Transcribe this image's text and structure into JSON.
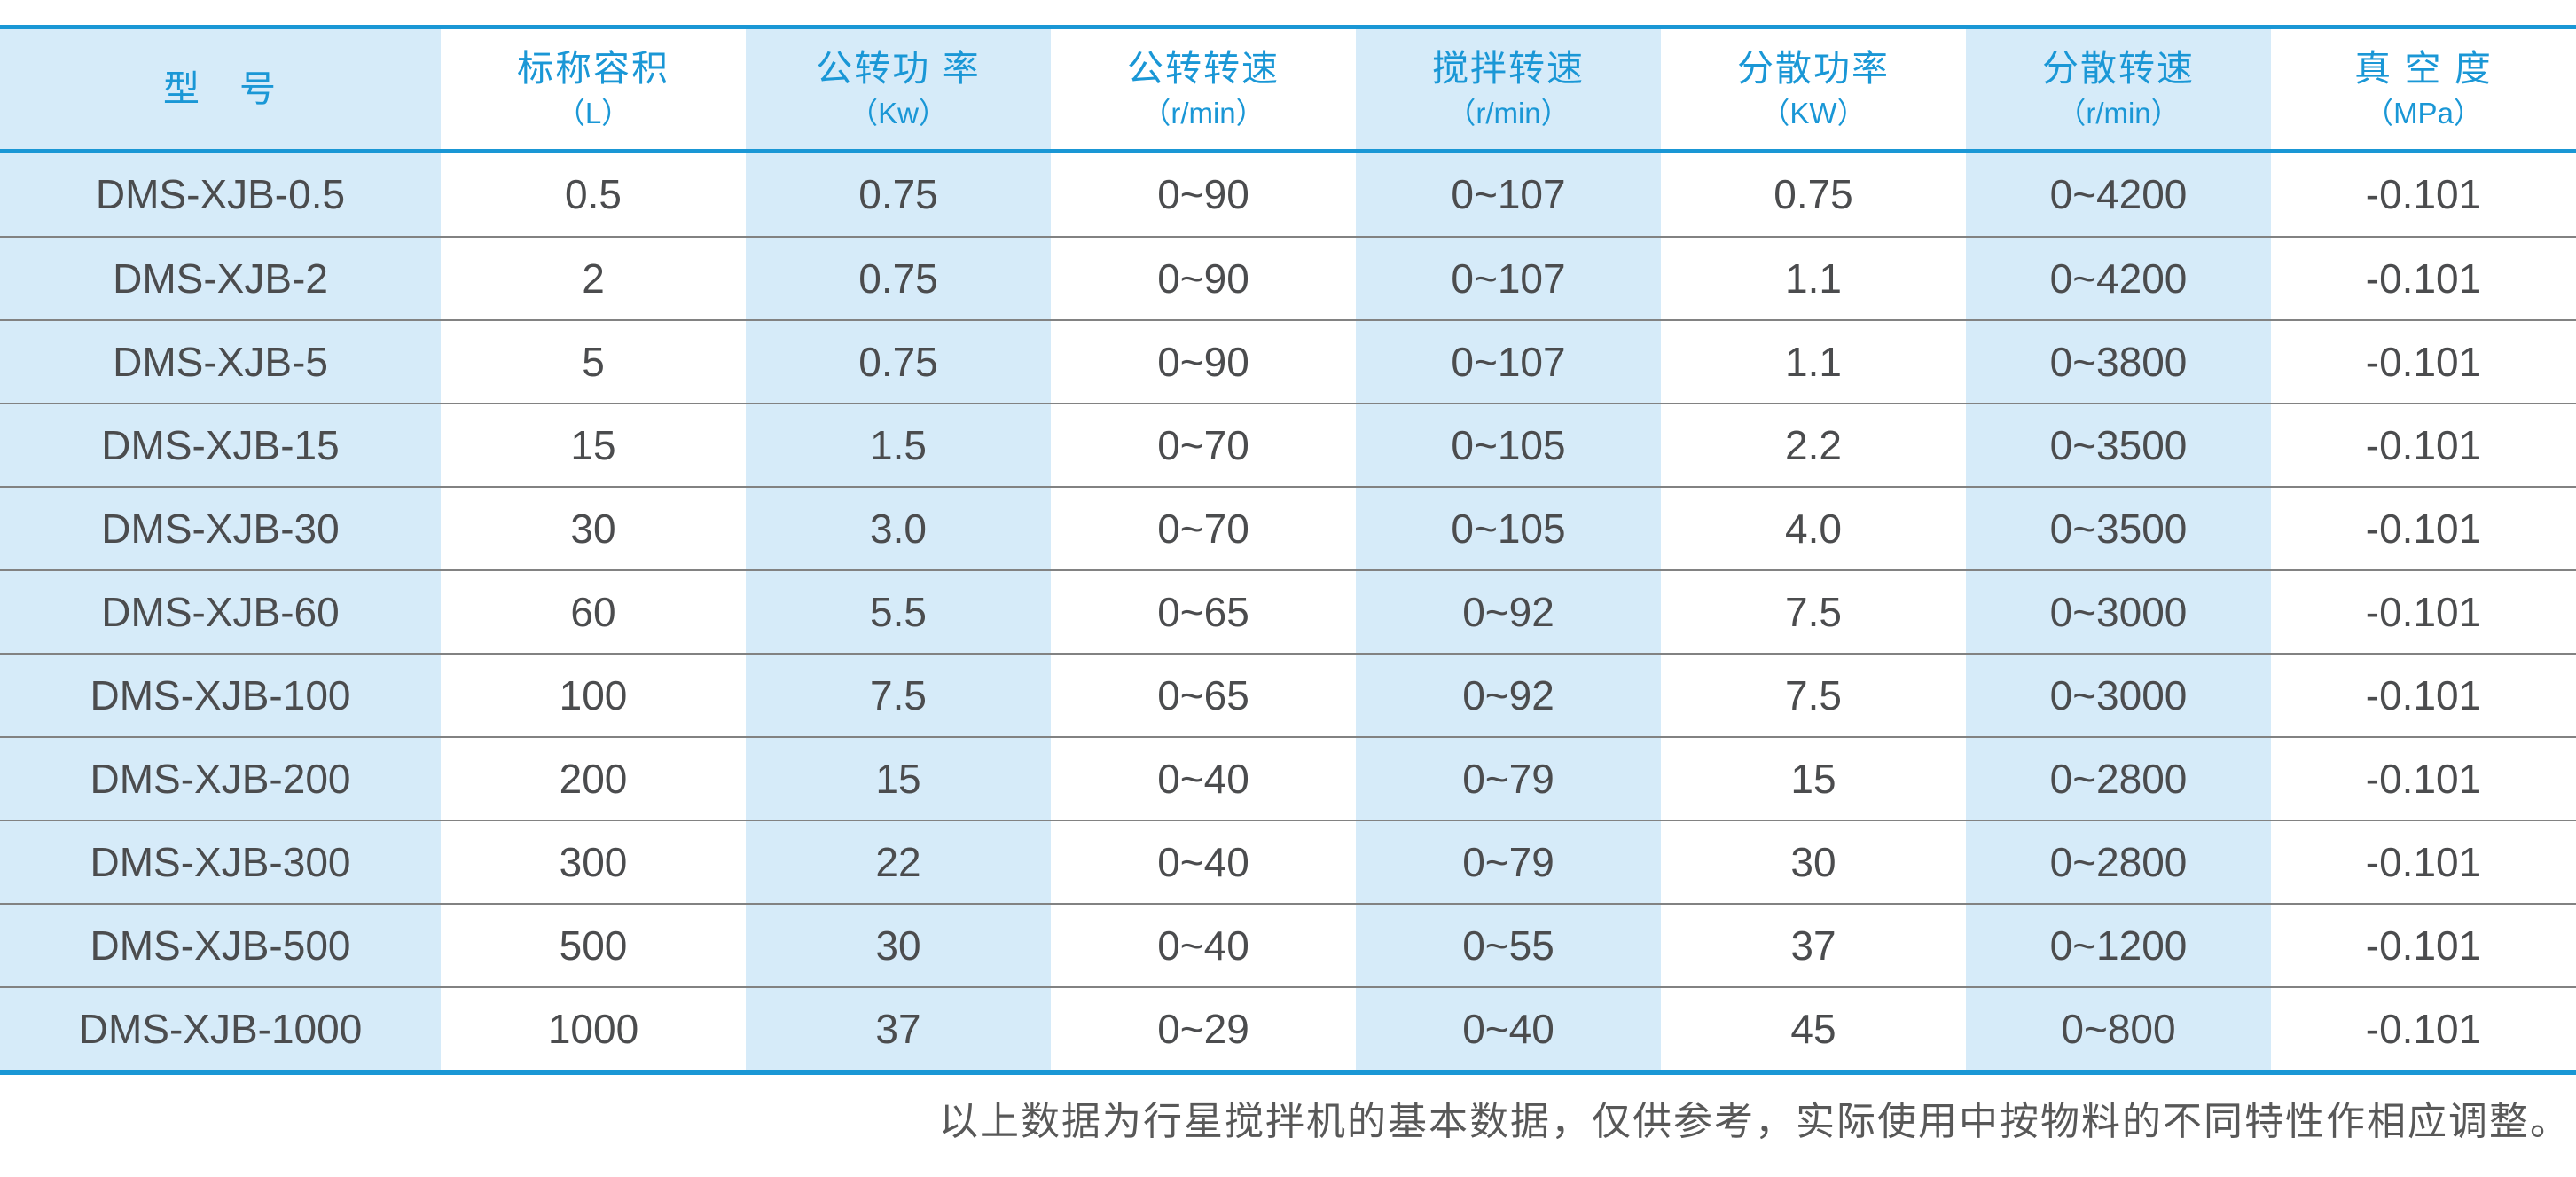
{
  "colors": {
    "accent_blue": "#1a97d5",
    "band_blue": "#d6ebf9",
    "separator_gray": "#828282",
    "header_text_blue": "#1a97d6",
    "body_text": "#4b4c4e",
    "footnote_text": "#585858"
  },
  "chart_data": {
    "type": "table",
    "columns": [
      {
        "title": "型　号",
        "unit": ""
      },
      {
        "title": "标称容积",
        "unit": "（L）"
      },
      {
        "title": "公转功 率",
        "unit": "（Kw）"
      },
      {
        "title": "公转转速",
        "unit": "（r/min）"
      },
      {
        "title": "搅拌转速",
        "unit": "（r/min）"
      },
      {
        "title": "分散功率",
        "unit": "（KW）"
      },
      {
        "title": "分散转速",
        "unit": "（r/min）"
      },
      {
        "title": "真 空 度",
        "unit": "（MPa）"
      }
    ],
    "rows": [
      {
        "cells": [
          "DMS-XJB-0.5",
          "0.5",
          "0.75",
          "0~90",
          "0~107",
          "0.75",
          "0~4200",
          "-0.101"
        ]
      },
      {
        "cells": [
          "DMS-XJB-2",
          "2",
          "0.75",
          "0~90",
          "0~107",
          "1.1",
          "0~4200",
          "-0.101"
        ]
      },
      {
        "cells": [
          "DMS-XJB-5",
          "5",
          "0.75",
          "0~90",
          "0~107",
          "1.1",
          "0~3800",
          "-0.101"
        ]
      },
      {
        "cells": [
          "DMS-XJB-15",
          "15",
          "1.5",
          "0~70",
          "0~105",
          "2.2",
          "0~3500",
          "-0.101"
        ]
      },
      {
        "cells": [
          "DMS-XJB-30",
          "30",
          "3.0",
          "0~70",
          "0~105",
          "4.0",
          "0~3500",
          "-0.101"
        ]
      },
      {
        "cells": [
          "DMS-XJB-60",
          "60",
          "5.5",
          "0~65",
          "0~92",
          "7.5",
          "0~3000",
          "-0.101"
        ]
      },
      {
        "cells": [
          "DMS-XJB-100",
          "100",
          "7.5",
          "0~65",
          "0~92",
          "7.5",
          "0~3000",
          "-0.101"
        ]
      },
      {
        "cells": [
          "DMS-XJB-200",
          "200",
          "15",
          "0~40",
          "0~79",
          "15",
          "0~2800",
          "-0.101"
        ]
      },
      {
        "cells": [
          "DMS-XJB-300",
          "300",
          "22",
          "0~40",
          "0~79",
          "30",
          "0~2800",
          "-0.101"
        ]
      },
      {
        "cells": [
          "DMS-XJB-500",
          "500",
          "30",
          "0~40",
          "0~55",
          "37",
          "0~1200",
          "-0.101"
        ]
      },
      {
        "cells": [
          "DMS-XJB-1000",
          "1000",
          "37",
          "0~29",
          "0~40",
          "45",
          "0~800",
          "-0.101"
        ]
      }
    ],
    "footnote": "以上数据为行星搅拌机的基本数据，仅供参考，实际使用中按物料的不同特性作相应调整。"
  }
}
